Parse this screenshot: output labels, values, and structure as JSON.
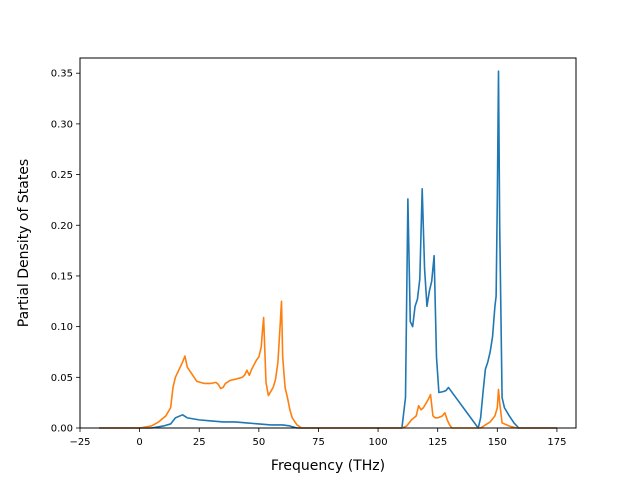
{
  "chart_data": {
    "type": "line",
    "title": "",
    "xlabel": "Frequency (THz)",
    "ylabel": "Partial Density of States",
    "xlim": [
      -25,
      183
    ],
    "ylim": [
      0,
      0.365
    ],
    "xticks": [
      -25,
      0,
      25,
      50,
      75,
      100,
      125,
      150,
      175
    ],
    "xtick_labels": [
      "−25",
      "0",
      "25",
      "50",
      "75",
      "100",
      "125",
      "150",
      "175"
    ],
    "yticks": [
      0,
      0.05,
      0.1,
      0.15,
      0.2,
      0.25,
      0.3,
      0.35
    ],
    "ytick_labels": [
      "0.00",
      "0.05",
      "0.10",
      "0.15",
      "0.20",
      "0.25",
      "0.30",
      "0.35"
    ],
    "grid": false,
    "legend": false,
    "series": [
      {
        "color": "#1f77b4",
        "x": [
          -17,
          5,
          10,
          13,
          15,
          18,
          20,
          25,
          30,
          35,
          40,
          45,
          50,
          55,
          58,
          60,
          63,
          66,
          110,
          111.5,
          112.5,
          113.5,
          114.5,
          115.5,
          116.5,
          117.5,
          118.5,
          119.5,
          120.5,
          121.5,
          122.5,
          123.5,
          124.5,
          125.5,
          127.5,
          128.5,
          129.5,
          142,
          143,
          144,
          145,
          146,
          147,
          148,
          149,
          149.5,
          150,
          150.5,
          151,
          152,
          153,
          155,
          157,
          159,
          175
        ],
        "y": [
          0,
          0,
          0.002,
          0.004,
          0.01,
          0.013,
          0.01,
          0.008,
          0.007,
          0.006,
          0.006,
          0.005,
          0.004,
          0.003,
          0.003,
          0.003,
          0.002,
          0,
          0,
          0.03,
          0.226,
          0.105,
          0.1,
          0.12,
          0.127,
          0.147,
          0.236,
          0.157,
          0.12,
          0.135,
          0.145,
          0.17,
          0.07,
          0.035,
          0.036,
          0.037,
          0.04,
          0,
          0.01,
          0.035,
          0.058,
          0.065,
          0.075,
          0.09,
          0.12,
          0.13,
          0.225,
          0.352,
          0.2,
          0.03,
          0.02,
          0.012,
          0.005,
          0,
          0
        ]
      },
      {
        "color": "#ff7f0e",
        "x": [
          -17,
          0,
          5,
          8,
          11,
          13,
          14,
          15,
          17,
          18,
          19,
          20,
          22,
          24,
          27,
          30,
          32,
          33,
          34,
          35,
          36,
          38,
          40,
          43,
          44,
          45,
          46,
          47,
          49,
          50,
          51,
          51.5,
          52,
          53,
          54,
          56,
          57,
          58,
          59,
          59.5,
          60,
          61,
          62,
          63,
          64,
          66,
          68,
          110,
          112,
          114,
          116,
          117,
          118,
          119,
          120,
          121,
          122,
          123,
          124,
          125,
          127,
          128,
          129,
          130,
          131,
          143,
          145,
          147,
          149,
          150,
          150.5,
          151,
          152,
          155,
          158,
          175
        ],
        "y": [
          0,
          0,
          0.002,
          0.006,
          0.012,
          0.02,
          0.04,
          0.05,
          0.06,
          0.065,
          0.071,
          0.06,
          0.053,
          0.046,
          0.044,
          0.044,
          0.045,
          0.043,
          0.039,
          0.04,
          0.044,
          0.047,
          0.048,
          0.05,
          0.052,
          0.057,
          0.052,
          0.058,
          0.067,
          0.07,
          0.08,
          0.095,
          0.109,
          0.045,
          0.032,
          0.04,
          0.048,
          0.065,
          0.104,
          0.125,
          0.07,
          0.04,
          0.03,
          0.018,
          0.01,
          0.003,
          0,
          0,
          0.002,
          0.008,
          0.012,
          0.022,
          0.018,
          0.02,
          0.024,
          0.028,
          0.033,
          0.012,
          0.01,
          0.01,
          0.012,
          0.015,
          0.008,
          0.003,
          0,
          0,
          0.003,
          0.006,
          0.012,
          0.02,
          0.038,
          0.025,
          0.005,
          0.002,
          0,
          0
        ]
      }
    ]
  }
}
